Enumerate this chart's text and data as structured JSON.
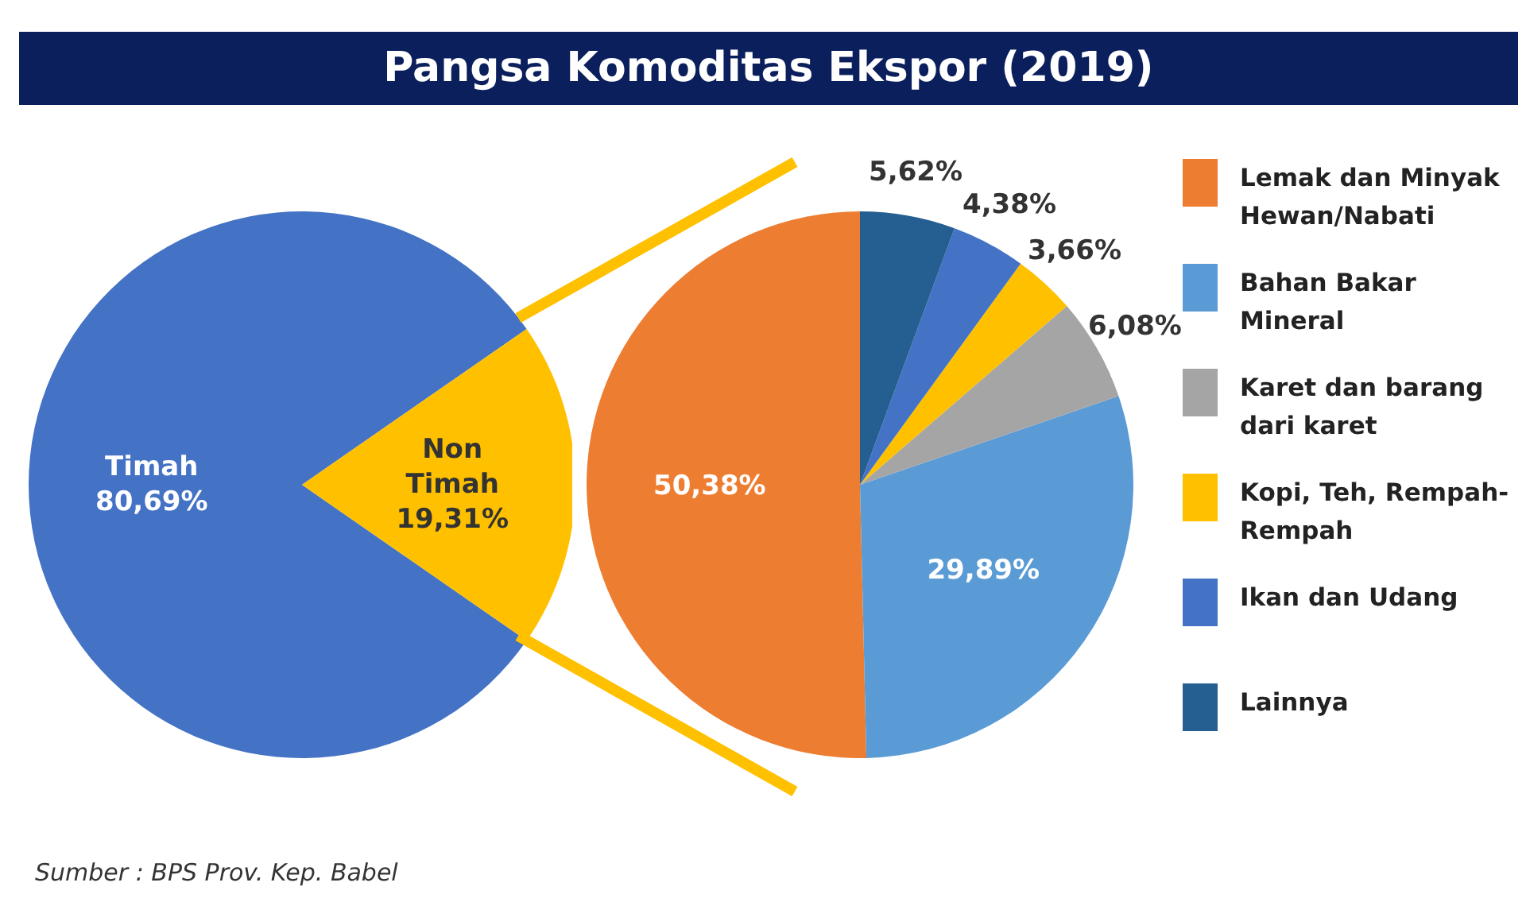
{
  "chart_data": [
    {
      "type": "pie",
      "title": "Pangsa Komoditas Ekspor (2019)",
      "categories": [
        "Timah",
        "Non Timah"
      ],
      "values": [
        80.69,
        19.31
      ],
      "colors": [
        "#4472c4",
        "#ffc000"
      ],
      "value_labels": [
        "80,69%",
        "19,31%"
      ],
      "annotations": [
        "Sumber : BPS Prov. Kep. Babel"
      ]
    },
    {
      "type": "pie",
      "categories": [
        "Lemak dan Minyak Hewan/Nabati",
        "Bahan Bakar Mineral",
        "Karet dan barang dari karet",
        "Kopi, Teh, Rempah-Rempah",
        "Ikan dan Udang",
        "Lainnya"
      ],
      "values": [
        50.38,
        29.89,
        6.08,
        3.66,
        4.38,
        5.62
      ],
      "colors": [
        "#ed7d31",
        "#5b9bd5",
        "#a5a5a5",
        "#ffc000",
        "#4472c4",
        "#255e91"
      ],
      "value_labels": [
        "50,38%",
        "29,89%",
        "6,08%",
        "3,66%",
        "4,38%",
        "5,62%"
      ],
      "legend": "right"
    }
  ]
}
